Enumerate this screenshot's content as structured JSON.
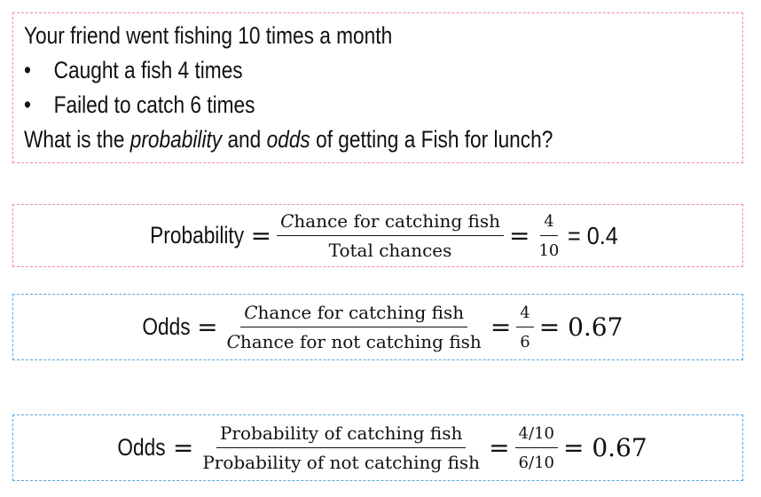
{
  "problem": {
    "intro": "Your friend went fishing 10 times a month",
    "bullets": [
      "Caught a fish 4 times",
      "Failed to catch 6 times"
    ],
    "question_prefix": "What is the ",
    "question_word1": "probability",
    "question_mid": " and ",
    "question_word2": "odds",
    "question_suffix": " of getting a Fish for lunch?"
  },
  "formula_probability": {
    "label": "Probability",
    "eq": "=",
    "num_first": "C",
    "num_rest": "hance for catching fish",
    "den": "Total chances",
    "frac2_num": "4",
    "frac2_den": "10",
    "result": "= 0.4"
  },
  "formula_odds_chances": {
    "label": "Odds",
    "eq": "=",
    "num_first": "C",
    "num_rest": "hance for catching fish",
    "den_first": "C",
    "den_rest": "hance for not catching fish",
    "frac2_num": "4",
    "frac2_den": "6",
    "result": "= 0.67"
  },
  "formula_odds_probability": {
    "label": "Odds",
    "eq": "=",
    "num": "Probability of catching fish",
    "den": "Probability of not catching fish",
    "frac2_num": "4/10",
    "frac2_den": "6/10",
    "result": "= 0.67"
  },
  "colors": {
    "probability_box_border": "#f08f95",
    "odds_box_border": "#5aa6d6"
  }
}
